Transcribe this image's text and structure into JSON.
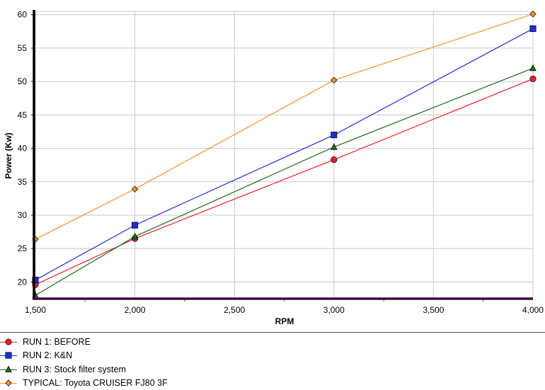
{
  "chart_data": {
    "type": "line",
    "title": "",
    "xlabel": "RPM",
    "ylabel": "Power (Kw)",
    "xlim": [
      1500,
      4000
    ],
    "ylim": [
      17.5,
      60.5
    ],
    "x_ticks": [
      1500,
      2000,
      2500,
      3000,
      3500,
      4000
    ],
    "x_tick_labels": [
      "1,500",
      "2,000",
      "2,500",
      "3,000",
      "3,500",
      "4,000"
    ],
    "y_ticks": [
      20,
      25,
      30,
      35,
      40,
      45,
      50,
      55,
      60
    ],
    "y_tick_labels": [
      "20",
      "25",
      "30",
      "35",
      "40",
      "45",
      "50",
      "55",
      "60"
    ],
    "grid": true,
    "legend_position": "bottom",
    "series": [
      {
        "name": "RUN 1: BEFORE",
        "color": "#e8202a",
        "marker": "circle",
        "x": [
          1500,
          2000,
          3000,
          4000
        ],
        "values": [
          19.6,
          26.5,
          38.3,
          50.4
        ]
      },
      {
        "name": "RUN 2: K&N",
        "color": "#1c2fd6",
        "marker": "square",
        "x": [
          1500,
          2000,
          3000,
          4000
        ],
        "values": [
          20.3,
          28.5,
          42.0,
          57.9
        ]
      },
      {
        "name": "RUN 3: Stock filter system",
        "color": "#1e6b1e",
        "marker": "triangle",
        "x": [
          1500,
          2000,
          3000,
          4000
        ],
        "values": [
          18.0,
          26.8,
          40.2,
          52.0
        ]
      },
      {
        "name": "TYPICAL: Toyota CRUISER FJ80 3F",
        "color": "#f0922c",
        "marker": "diamond",
        "x": [
          1500,
          2000,
          3000,
          4000
        ],
        "values": [
          26.4,
          33.9,
          50.2,
          60.1
        ]
      }
    ]
  }
}
